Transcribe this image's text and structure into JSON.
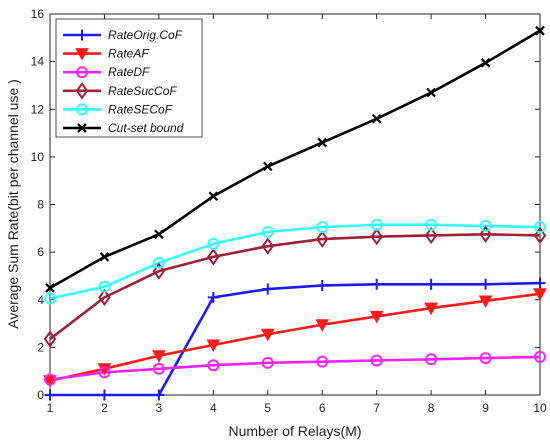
{
  "chart_data": {
    "type": "line",
    "xlabel": "Number of Relays(M)",
    "ylabel": "Average Sum Rate(bit per channel use )",
    "x": [
      1,
      2,
      3,
      4,
      5,
      6,
      7,
      8,
      9,
      10
    ],
    "xlim": [
      1,
      10
    ],
    "ylim": [
      0,
      16
    ],
    "xticks": [
      "1",
      "2",
      "3",
      "4",
      "5",
      "6",
      "7",
      "8",
      "9",
      "10"
    ],
    "yticks": [
      "0",
      "2",
      "4",
      "6",
      "8",
      "10",
      "12",
      "14",
      "16"
    ],
    "grid": false,
    "legend_position": "top-left",
    "series": [
      {
        "name": "RateOrig.CoF",
        "color": "#1a1aff",
        "marker": "plus",
        "values": [
          0,
          0,
          0,
          4.1,
          4.45,
          4.6,
          4.65,
          4.65,
          4.65,
          4.7
        ]
      },
      {
        "name": "RateAF",
        "color": "#ff1a1a",
        "marker": "triangle-down",
        "values": [
          0.6,
          1.1,
          1.65,
          2.1,
          2.55,
          2.95,
          3.3,
          3.65,
          3.95,
          4.25
        ]
      },
      {
        "name": "RateDF",
        "color": "#ff22ff",
        "marker": "circle",
        "values": [
          0.65,
          0.95,
          1.1,
          1.25,
          1.35,
          1.4,
          1.45,
          1.5,
          1.55,
          1.6
        ]
      },
      {
        "name": "RateSucCoF",
        "color": "#a0203a",
        "marker": "diamond",
        "values": [
          2.35,
          4.1,
          5.2,
          5.8,
          6.25,
          6.55,
          6.65,
          6.7,
          6.75,
          6.7
        ]
      },
      {
        "name": "RateSECoF",
        "color": "#33ffff",
        "marker": "circle",
        "values": [
          4.05,
          4.55,
          5.55,
          6.35,
          6.85,
          7.05,
          7.15,
          7.15,
          7.1,
          7.05
        ]
      },
      {
        "name": "Cut-set bound",
        "color": "#000000",
        "marker": "x",
        "values": [
          4.5,
          5.8,
          6.75,
          8.35,
          9.6,
          10.6,
          11.6,
          12.7,
          13.95,
          15.3
        ]
      }
    ]
  }
}
